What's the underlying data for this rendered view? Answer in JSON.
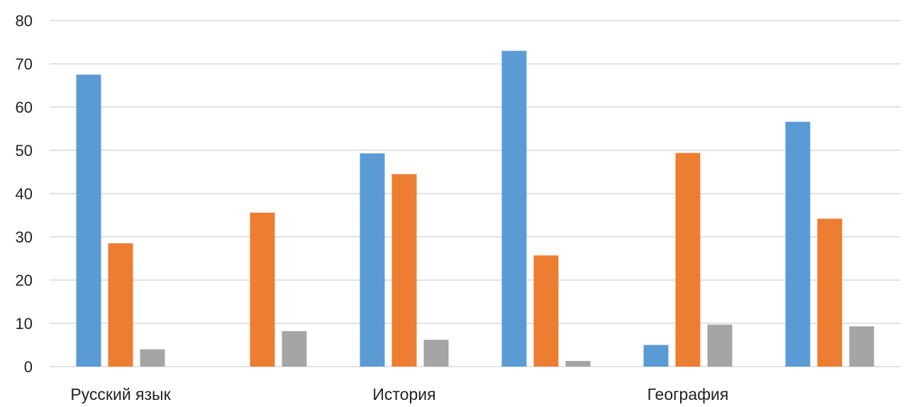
{
  "chart_data": {
    "type": "bar",
    "categories": [
      "Русский язык",
      "",
      "История",
      "",
      "География",
      ""
    ],
    "series": [
      {
        "color": "#5b9bd5",
        "values": [
          67.5,
          0,
          49.3,
          73,
          5,
          56.6
        ]
      },
      {
        "color": "#ed7d31",
        "values": [
          28.5,
          35.6,
          44.5,
          25.7,
          49.4,
          34.2
        ]
      },
      {
        "color": "#a5a5a5",
        "values": [
          4,
          8.2,
          6.2,
          1.3,
          9.7,
          9.3
        ]
      }
    ],
    "ylim": [
      0,
      80
    ],
    "yticks": [
      0,
      10,
      20,
      30,
      40,
      50,
      60,
      70,
      80
    ],
    "grid": true,
    "legend": "none"
  }
}
